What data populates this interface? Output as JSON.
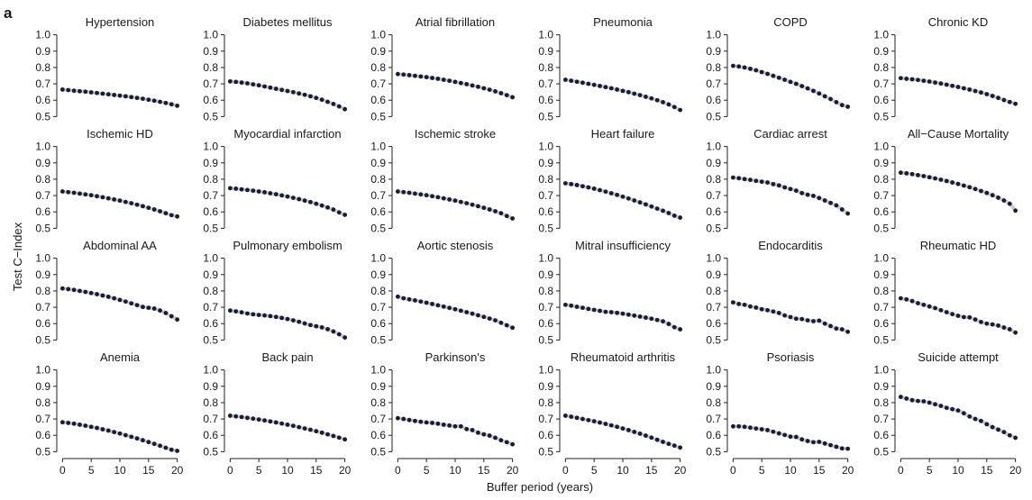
{
  "figure": {
    "panel_label": "a",
    "ylabel": "Test C−Index",
    "xlabel": "Buffer period (years)",
    "point_color": "#1c1c2b",
    "band_color": "#c9cde8"
  },
  "chart_data": {
    "type": "scatter",
    "x": [
      0,
      1,
      2,
      3,
      4,
      5,
      6,
      7,
      8,
      9,
      10,
      11,
      12,
      13,
      14,
      15,
      16,
      17,
      18,
      19,
      20
    ],
    "xlim": [
      -1,
      21
    ],
    "ylim": [
      0.48,
      1.02
    ],
    "xticks": [
      0,
      5,
      10,
      15,
      20
    ],
    "yticks": [
      0.5,
      0.6,
      0.7,
      0.8,
      0.9,
      1.0
    ],
    "ytick_labels": [
      "0.5",
      "0.6",
      "0.7",
      "0.8",
      "0.9",
      "1.0"
    ],
    "panels": [
      {
        "title": "Hypertension",
        "values": [
          0.665,
          0.662,
          0.658,
          0.655,
          0.652,
          0.648,
          0.644,
          0.64,
          0.636,
          0.632,
          0.628,
          0.624,
          0.619,
          0.614,
          0.609,
          0.603,
          0.597,
          0.59,
          0.583,
          0.575,
          0.566
        ]
      },
      {
        "title": "Diabetes mellitus",
        "values": [
          0.715,
          0.712,
          0.708,
          0.703,
          0.697,
          0.691,
          0.684,
          0.677,
          0.67,
          0.663,
          0.656,
          0.649,
          0.641,
          0.633,
          0.624,
          0.614,
          0.603,
          0.59,
          0.577,
          0.562,
          0.545
        ]
      },
      {
        "title": "Atrial fibrillation",
        "values": [
          0.76,
          0.757,
          0.753,
          0.749,
          0.745,
          0.741,
          0.736,
          0.731,
          0.725,
          0.719,
          0.712,
          0.705,
          0.698,
          0.69,
          0.682,
          0.673,
          0.664,
          0.654,
          0.643,
          0.631,
          0.618
        ]
      },
      {
        "title": "Pneumonia",
        "values": [
          0.725,
          0.719,
          0.713,
          0.707,
          0.7,
          0.694,
          0.687,
          0.68,
          0.673,
          0.665,
          0.657,
          0.649,
          0.64,
          0.631,
          0.621,
          0.611,
          0.6,
          0.588,
          0.574,
          0.558,
          0.54
        ]
      },
      {
        "title": "COPD",
        "values": [
          0.81,
          0.806,
          0.8,
          0.792,
          0.783,
          0.772,
          0.761,
          0.749,
          0.737,
          0.725,
          0.712,
          0.7,
          0.686,
          0.672,
          0.657,
          0.641,
          0.624,
          0.607,
          0.588,
          0.57,
          0.56
        ]
      },
      {
        "title": "Chronic KD",
        "values": [
          0.735,
          0.731,
          0.728,
          0.724,
          0.719,
          0.714,
          0.708,
          0.702,
          0.695,
          0.688,
          0.681,
          0.673,
          0.665,
          0.656,
          0.647,
          0.637,
          0.626,
          0.614,
          0.601,
          0.589,
          0.578
        ]
      },
      {
        "title": "Ischemic HD",
        "values": [
          0.725,
          0.721,
          0.717,
          0.712,
          0.707,
          0.702,
          0.696,
          0.69,
          0.683,
          0.676,
          0.669,
          0.661,
          0.653,
          0.644,
          0.635,
          0.625,
          0.615,
          0.604,
          0.592,
          0.58,
          0.572
        ]
      },
      {
        "title": "Myocardial infarction",
        "values": [
          0.745,
          0.742,
          0.738,
          0.734,
          0.73,
          0.725,
          0.72,
          0.714,
          0.708,
          0.701,
          0.694,
          0.686,
          0.678,
          0.669,
          0.66,
          0.65,
          0.639,
          0.627,
          0.614,
          0.597,
          0.582
        ]
      },
      {
        "title": "Ischemic stroke",
        "values": [
          0.725,
          0.721,
          0.717,
          0.712,
          0.707,
          0.702,
          0.696,
          0.69,
          0.683,
          0.676,
          0.669,
          0.661,
          0.653,
          0.644,
          0.635,
          0.625,
          0.615,
          0.604,
          0.592,
          0.575,
          0.56
        ]
      },
      {
        "title": "Heart failure",
        "values": [
          0.775,
          0.77,
          0.764,
          0.757,
          0.75,
          0.742,
          0.733,
          0.724,
          0.714,
          0.704,
          0.693,
          0.682,
          0.67,
          0.658,
          0.646,
          0.633,
          0.62,
          0.607,
          0.593,
          0.577,
          0.565
        ]
      },
      {
        "title": "Cardiac arrest",
        "values": [
          0.81,
          0.806,
          0.801,
          0.796,
          0.79,
          0.785,
          0.78,
          0.77,
          0.762,
          0.75,
          0.74,
          0.73,
          0.715,
          0.705,
          0.698,
          0.685,
          0.67,
          0.655,
          0.64,
          0.615,
          0.59
        ]
      },
      {
        "title": "All−Cause Mortality",
        "values": [
          0.84,
          0.836,
          0.831,
          0.825,
          0.819,
          0.812,
          0.805,
          0.797,
          0.789,
          0.78,
          0.771,
          0.761,
          0.751,
          0.74,
          0.728,
          0.716,
          0.702,
          0.687,
          0.67,
          0.65,
          0.608
        ]
      },
      {
        "title": "Abdominal AA",
        "values": [
          0.815,
          0.811,
          0.806,
          0.8,
          0.794,
          0.787,
          0.78,
          0.772,
          0.764,
          0.755,
          0.745,
          0.735,
          0.724,
          0.713,
          0.702,
          0.697,
          0.692,
          0.68,
          0.665,
          0.645,
          0.625
        ]
      },
      {
        "title": "Pulmonary embolism",
        "values": [
          0.68,
          0.675,
          0.669,
          0.662,
          0.657,
          0.653,
          0.65,
          0.646,
          0.641,
          0.635,
          0.628,
          0.62,
          0.611,
          0.601,
          0.591,
          0.584,
          0.577,
          0.566,
          0.552,
          0.535,
          0.515
        ]
      },
      {
        "title": "Aortic stenosis",
        "values": [
          0.765,
          0.755,
          0.748,
          0.742,
          0.735,
          0.728,
          0.72,
          0.712,
          0.704,
          0.696,
          0.688,
          0.679,
          0.67,
          0.661,
          0.651,
          0.641,
          0.631,
          0.62,
          0.605,
          0.59,
          0.575
        ]
      },
      {
        "title": "Mitral insufficiency",
        "values": [
          0.715,
          0.71,
          0.703,
          0.697,
          0.69,
          0.684,
          0.678,
          0.672,
          0.67,
          0.666,
          0.661,
          0.655,
          0.649,
          0.643,
          0.637,
          0.63,
          0.622,
          0.614,
          0.598,
          0.578,
          0.565
        ]
      },
      {
        "title": "Endocarditis",
        "values": [
          0.73,
          0.72,
          0.715,
          0.705,
          0.698,
          0.688,
          0.682,
          0.674,
          0.665,
          0.65,
          0.64,
          0.63,
          0.628,
          0.62,
          0.615,
          0.618,
          0.6,
          0.585,
          0.57,
          0.565,
          0.55
        ]
      },
      {
        "title": "Rheumatic HD",
        "values": [
          0.755,
          0.748,
          0.738,
          0.725,
          0.715,
          0.705,
          0.695,
          0.682,
          0.67,
          0.658,
          0.648,
          0.64,
          0.638,
          0.625,
          0.61,
          0.6,
          0.595,
          0.588,
          0.576,
          0.565,
          0.545
        ]
      },
      {
        "title": "Anemia",
        "values": [
          0.68,
          0.676,
          0.671,
          0.665,
          0.659,
          0.652,
          0.645,
          0.637,
          0.629,
          0.62,
          0.611,
          0.601,
          0.591,
          0.581,
          0.57,
          0.559,
          0.548,
          0.536,
          0.524,
          0.512,
          0.505
        ]
      },
      {
        "title": "Back pain",
        "values": [
          0.72,
          0.716,
          0.712,
          0.707,
          0.702,
          0.697,
          0.691,
          0.685,
          0.679,
          0.672,
          0.665,
          0.658,
          0.65,
          0.642,
          0.634,
          0.625,
          0.616,
          0.606,
          0.596,
          0.586,
          0.575
        ]
      },
      {
        "title": "Parkinson's",
        "values": [
          0.705,
          0.7,
          0.694,
          0.688,
          0.683,
          0.679,
          0.676,
          0.671,
          0.665,
          0.66,
          0.655,
          0.655,
          0.638,
          0.632,
          0.616,
          0.606,
          0.598,
          0.585,
          0.57,
          0.558,
          0.545
        ]
      },
      {
        "title": "Rheumatoid arthritis",
        "values": [
          0.72,
          0.714,
          0.707,
          0.7,
          0.693,
          0.686,
          0.678,
          0.67,
          0.661,
          0.652,
          0.642,
          0.632,
          0.621,
          0.61,
          0.598,
          0.586,
          0.573,
          0.56,
          0.548,
          0.537,
          0.525
        ]
      },
      {
        "title": "Psoriasis",
        "values": [
          0.655,
          0.655,
          0.652,
          0.647,
          0.642,
          0.637,
          0.632,
          0.622,
          0.612,
          0.602,
          0.592,
          0.59,
          0.575,
          0.565,
          0.558,
          0.56,
          0.55,
          0.54,
          0.53,
          0.52,
          0.518
        ]
      },
      {
        "title": "Suicide attempt",
        "values": [
          0.835,
          0.825,
          0.815,
          0.81,
          0.808,
          0.8,
          0.79,
          0.78,
          0.768,
          0.76,
          0.752,
          0.735,
          0.715,
          0.7,
          0.688,
          0.668,
          0.65,
          0.635,
          0.62,
          0.6,
          0.585
        ]
      }
    ]
  }
}
